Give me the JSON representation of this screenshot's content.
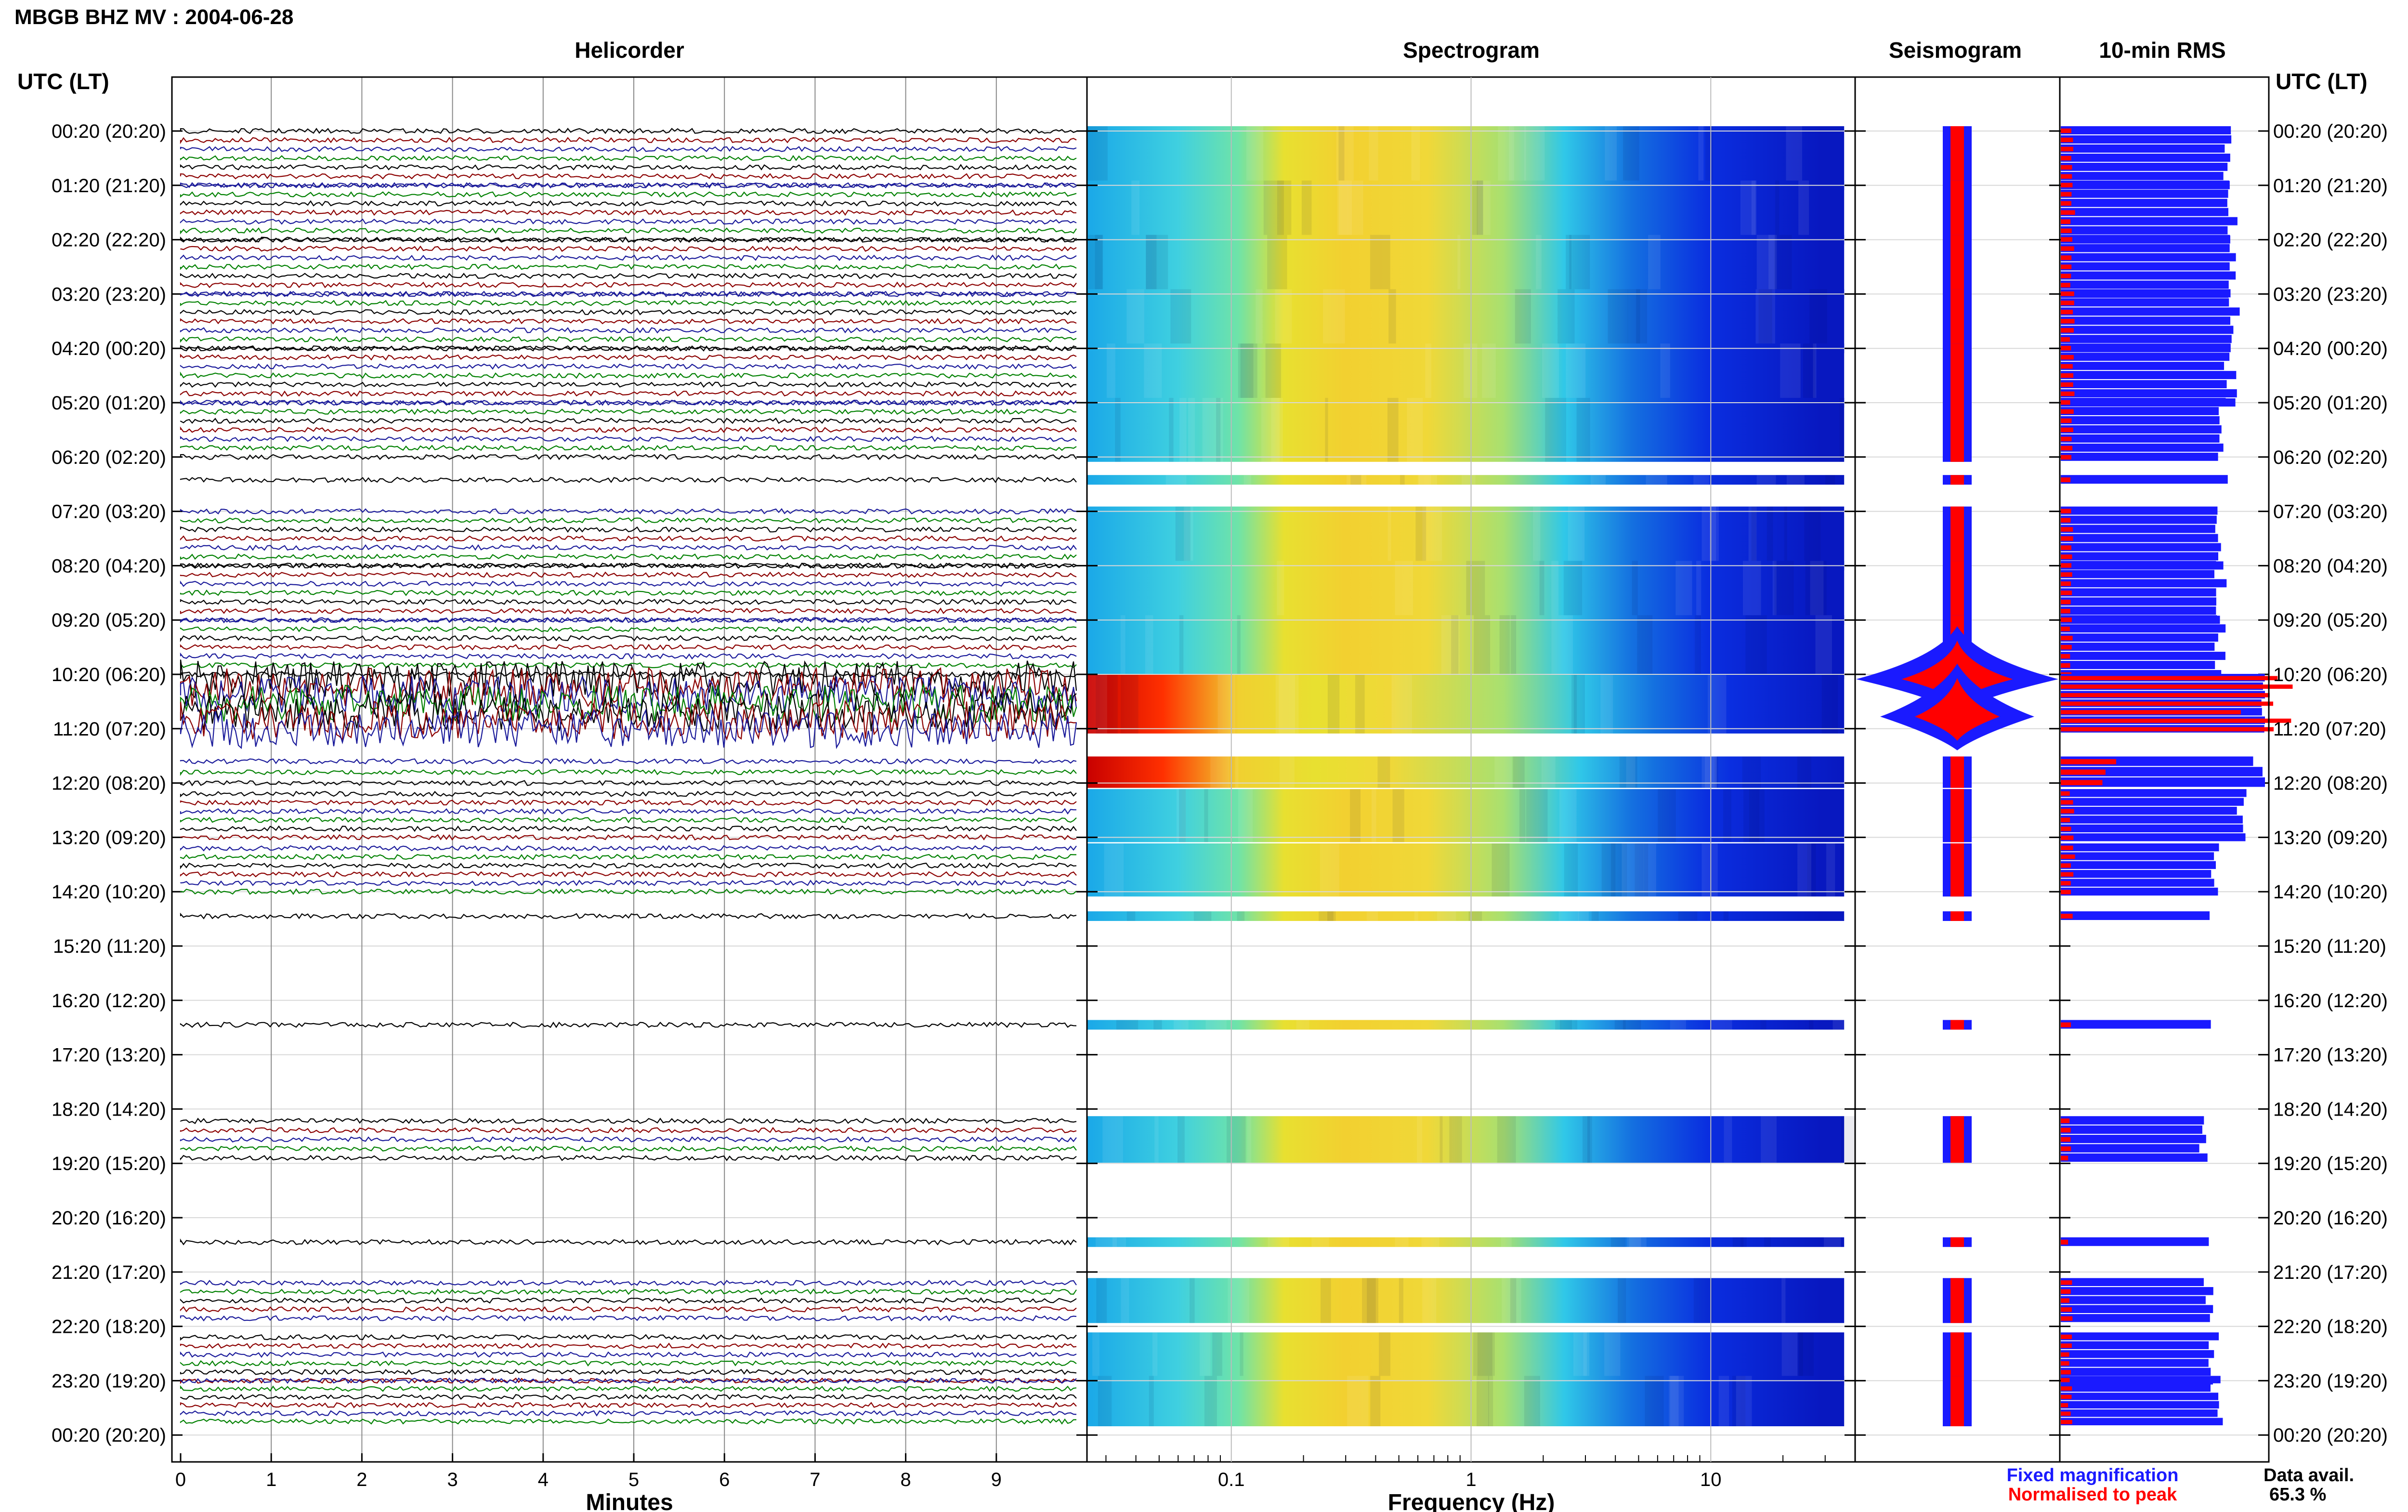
{
  "page": {
    "title": "MBGB BHZ MV : 2004-06-28",
    "utc_label_left": "UTC (LT)",
    "utc_label_right": "UTC (LT)"
  },
  "panels": {
    "helicorder": "Helicorder",
    "spectrogram": "Spectrogram",
    "seismogram": "Seismogram",
    "rms": "10-min RMS"
  },
  "legend": {
    "fixed": "Fixed magnification",
    "normalised": "Normalised to peak",
    "fixed_color": "#1a1aff",
    "normalised_color": "#ff0000"
  },
  "data_avail": {
    "label": "Data avail.",
    "value": "65.3 %"
  },
  "chart_data": {
    "type": "heatmap",
    "time_labels": [
      "00:20 (20:20)",
      "01:20 (21:20)",
      "02:20 (22:20)",
      "03:20 (23:20)",
      "04:20 (00:20)",
      "05:20 (01:20)",
      "06:20 (02:20)",
      "07:20 (03:20)",
      "08:20 (04:20)",
      "09:20 (05:20)",
      "10:20 (06:20)",
      "11:20 (07:20)",
      "12:20 (08:20)",
      "13:20 (09:20)",
      "14:20 (10:20)",
      "15:20 (11:20)",
      "16:20 (12:20)",
      "17:20 (13:20)",
      "18:20 (14:20)",
      "19:20 (15:20)",
      "20:20 (16:20)",
      "21:20 (17:20)",
      "22:20 (18:20)",
      "23:20 (19:20)",
      "00:20 (20:20)"
    ],
    "helicorder": {
      "xlabel": "Minutes",
      "xticks": [
        0,
        1,
        2,
        3,
        4,
        5,
        6,
        7,
        8,
        9
      ],
      "xlim": [
        0,
        10
      ],
      "trace_colors": [
        "#000000",
        "#8b0000",
        "#1a1a9a",
        "#008000"
      ]
    },
    "spectrogram": {
      "xlabel": "Frequency (Hz)",
      "xscale": "log",
      "xticks": [
        0.1,
        1,
        10
      ],
      "xticklabels": [
        "0.1",
        "1",
        "10"
      ],
      "xlim": [
        0.025,
        40
      ]
    },
    "availability": [
      [
        0,
        1
      ],
      [
        0,
        1
      ],
      [
        0,
        1
      ],
      [
        0,
        1
      ],
      [
        0,
        1
      ],
      [
        0,
        1
      ],
      [
        0.42,
        0.42
      ],
      [
        0,
        1
      ],
      [
        0,
        1
      ],
      [
        0,
        1
      ],
      [
        0.08,
        1
      ],
      [
        0.6,
        1
      ],
      [
        0.2,
        1
      ],
      [
        0.2,
        1
      ],
      [
        0.45,
        0.45
      ],
      [
        null,
        null
      ],
      [
        0.45,
        0.45
      ],
      [
        null,
        null
      ],
      [
        0.22,
        0.9
      ],
      [
        null,
        null
      ],
      [
        0.45,
        0.45
      ],
      [
        0.2,
        0.85
      ],
      [
        0.2,
        1
      ],
      [
        0,
        0.75
      ]
    ],
    "seismogram": {
      "event_rows": [
        10,
        11
      ]
    },
    "rms": {
      "blue": [
        0.84,
        0.86,
        0.86,
        0.86,
        0.85,
        0.8,
        0.82,
        0.8,
        0.8,
        0.8,
        1.0,
        1.0,
        0.9,
        0.78,
        0.74,
        null,
        0.75,
        null,
        0.72,
        null,
        0.72,
        0.74,
        0.76,
        0.78
      ],
      "red": [
        0.06,
        0.06,
        0.06,
        0.06,
        0.06,
        0.06,
        0.06,
        0.06,
        0.06,
        0.06,
        1.0,
        0.26,
        0.06,
        0.06,
        0.05,
        null,
        0.05,
        null,
        0.05,
        null,
        0.05,
        0.05,
        0.05,
        0.05
      ]
    }
  }
}
